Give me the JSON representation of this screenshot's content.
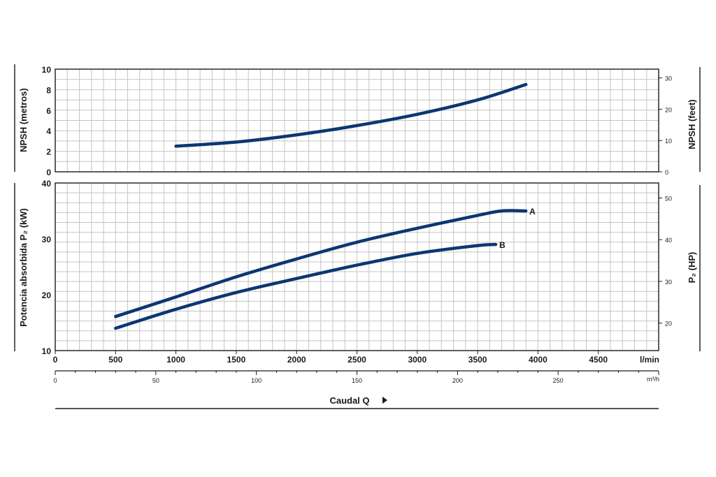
{
  "chart_data": [
    {
      "type": "line",
      "ylabel": "NPSH (metros)",
      "y2label": "NPSH (feet)",
      "xlim": [
        0,
        5000
      ],
      "ylim": [
        0,
        10
      ],
      "y2lim": [
        0,
        32.8
      ],
      "yticks": [
        0,
        2,
        4,
        6,
        8,
        10
      ],
      "y2ticks": [
        0,
        10,
        20,
        30
      ],
      "grid": true,
      "series": [
        {
          "x": [
            1000,
            1500,
            2000,
            2500,
            3000,
            3500,
            3900
          ],
          "y": [
            2.5,
            2.9,
            3.6,
            4.5,
            5.6,
            7.0,
            8.5
          ]
        }
      ]
    },
    {
      "type": "line",
      "ylabel": "Potencia absorbida P₂ (kW)",
      "y2label": "P₂ (HP)",
      "xlabel": "Caudal Q",
      "x_unit_label": "l/min",
      "x2_unit_label": "m³/h",
      "xlim": [
        0,
        5000
      ],
      "ylim": [
        10,
        40
      ],
      "y2lim": [
        13.4,
        53.6
      ],
      "xticks": [
        0,
        500,
        1000,
        1500,
        2000,
        2500,
        3000,
        3500,
        4000,
        4500
      ],
      "x2ticks": [
        0,
        50,
        100,
        150,
        200,
        250
      ],
      "yticks": [
        10,
        20,
        30,
        40
      ],
      "y2ticks": [
        20,
        30,
        40,
        50
      ],
      "grid": true,
      "series": [
        {
          "name": "A",
          "x": [
            500,
            1000,
            1500,
            2000,
            2500,
            3000,
            3500,
            3700,
            3900
          ],
          "y": [
            16.1,
            19.6,
            23.2,
            26.4,
            29.4,
            31.9,
            34.2,
            35.0,
            35.0
          ]
        },
        {
          "name": "B",
          "x": [
            500,
            1000,
            1500,
            2000,
            2500,
            3000,
            3500,
            3650
          ],
          "y": [
            14.0,
            17.4,
            20.4,
            22.9,
            25.3,
            27.4,
            28.8,
            29.0
          ]
        }
      ]
    }
  ]
}
